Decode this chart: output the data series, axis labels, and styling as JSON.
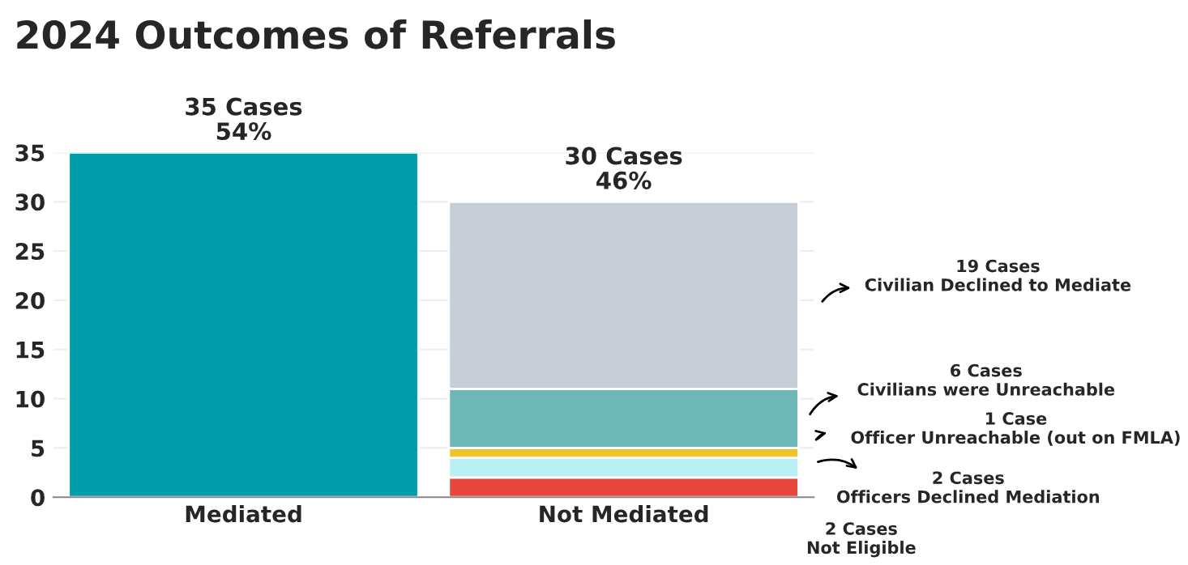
{
  "chart_data": {
    "type": "bar",
    "title": "2024 Outcomes of Referrals",
    "stacked": true,
    "categories": [
      "Mediated",
      "Not Mediated"
    ],
    "series": [
      {
        "color": "#009dab",
        "values": [
          35,
          null
        ]
      },
      {
        "color": "#e8453f",
        "values": [
          null,
          2
        ]
      },
      {
        "color": "#b8f0f3",
        "values": [
          null,
          2
        ]
      },
      {
        "color": "#f2c12e",
        "values": [
          null,
          1
        ]
      },
      {
        "color": "#6db7b6",
        "values": [
          null,
          6
        ]
      },
      {
        "color": "#c8ced7",
        "values": [
          null,
          19
        ]
      }
    ],
    "totals": [
      "35 Cases\n54%",
      "30 Cases\n46%"
    ],
    "annotations": [
      "19 Cases\nCivilian Declined to Mediate",
      "6 Cases\nCivilians were Unreachable",
      "1 Case\nOfficer Unreachable (out on FMLA)",
      "2 Cases\nOfficers Declined Mediation",
      "2 Cases\nNot Eligible"
    ],
    "ylim": [
      0,
      35
    ],
    "yticks": [
      0,
      5,
      10,
      15,
      20,
      25,
      30,
      35
    ],
    "grid": "y",
    "legend": false
  }
}
